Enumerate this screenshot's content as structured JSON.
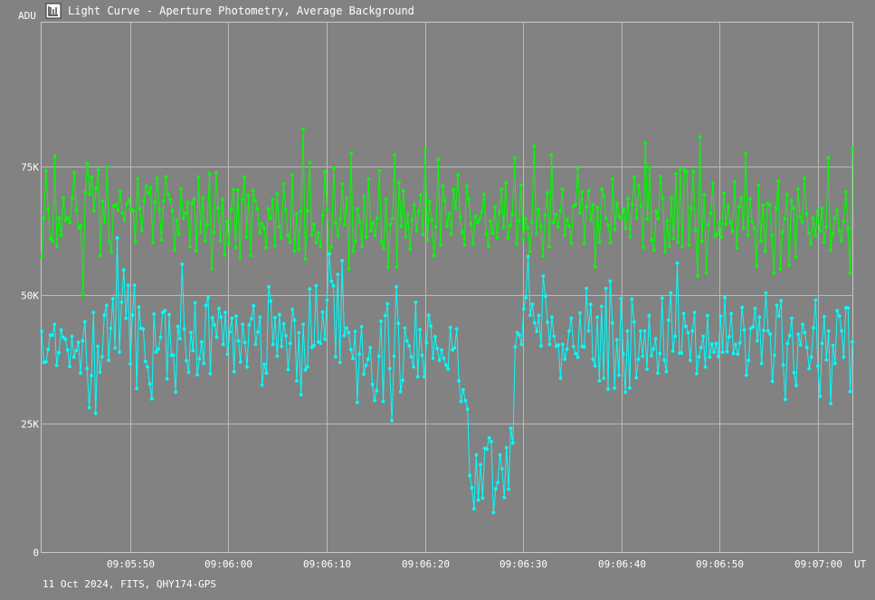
{
  "window": {
    "title": "Light Curve - Aperture Photometry, Average Background",
    "icon": "light-curve-app-icon"
  },
  "footer": {
    "info": "11 Oct 2024, FITS, QHY174-GPS"
  },
  "colors": {
    "background": "#828282",
    "grid": "#b9b9b9",
    "text": "#ffffff",
    "comparison_series": "#00ff00",
    "target_series": "#00ffff"
  },
  "chart_data": {
    "type": "line",
    "title": "Light Curve - Aperture Photometry, Average Background",
    "ylabel": "ADU",
    "xlabel": "UT",
    "ylim": [
      0,
      103000
    ],
    "xlim": [
      "09:05:41",
      "09:07:03.5"
    ],
    "grid": true,
    "y_ticks": [
      {
        "value": 0,
        "label": "0"
      },
      {
        "value": 25000,
        "label": "25K"
      },
      {
        "value": 50000,
        "label": "50K"
      },
      {
        "value": 75000,
        "label": "75K"
      }
    ],
    "x_ticks": [
      "09:05:50",
      "09:06:00",
      "09:06:10",
      "09:06:20",
      "09:06:30",
      "09:06:40",
      "09:06:50",
      "09:07:00"
    ],
    "sampling": {
      "start": "09:05:41",
      "end": "09:07:03.5",
      "points": 376
    },
    "series": [
      {
        "color": "#00ff00",
        "values": [
          57500,
          65000,
          74200,
          66700,
          61000,
          60500,
          77000,
          59500,
          65000,
          61600,
          68900,
          64500,
          65000,
          64100,
          68800,
          73800,
          66500,
          63000,
          63500,
          50000,
          70000,
          75600,
          69600,
          73000,
          66400,
          70800,
          74400,
          57700,
          68300,
          64200,
          74900,
          60400,
          58500,
          67300,
          67500,
          66500,
          70200,
          66000,
          64600,
          67700,
          68500,
          66700,
          66400,
          60400,
          72700,
          66800,
          62600,
          68300,
          71200,
          69800,
          70900,
          60200,
          68100,
          72700,
          66700,
          60700,
          68300,
          73000,
          69600,
          68600,
          66400,
          58800,
          64600,
          61800,
          70700,
          64900,
          65900,
          68000,
          59400,
          67800,
          68700,
          58600,
          72900,
          62200,
          68900,
          60500,
          63800,
          73600,
          55200,
          62200,
          73800,
          66900,
          60600,
          68600,
          57800,
          64300,
          59900,
          66700,
          70500,
          59200,
          70400,
          57200,
          68600,
          72900,
          61200,
          69400,
          57700,
          70300,
          68400,
          66700,
          62000,
          63900,
          63100,
          59200,
          66800,
          64900,
          68500,
          59600,
          69700,
          63300,
          61100,
          71600,
          66600,
          61700,
          60300,
          73400,
          58500,
          65800,
          58900,
          66300,
          82300,
          57000,
          66400,
          75800,
          61700,
          63800,
          60200,
          62100,
          59500,
          65500,
          74000,
          66600,
          58200,
          59400,
          74700,
          64000,
          61500,
          64800,
          71600,
          63700,
          68900,
          55100,
          77600,
          58500,
          60500,
          66800,
          64200,
          59500,
          69200,
          61200,
          72600,
          62500,
          64000,
          61600,
          64900,
          74200,
          60400,
          59100,
          68600,
          55400,
          63800,
          64900,
          77300,
          55500,
          71900,
          63400,
          70300,
          61400,
          65700,
          58900,
          64600,
          67600,
          62500,
          66300,
          69500,
          61800,
          78400,
          60700,
          68200,
          64600,
          57700,
          63300,
          76400,
          59700,
          71200,
          68400,
          63400,
          65800,
          61900,
          70500,
          67000,
          73400,
          65100,
          62200,
          59800,
          71200,
          68600,
          63800,
          59900,
          65400,
          64100,
          64800,
          66200,
          69600,
          61900,
          59500,
          64400,
          62000,
          67200,
          61100,
          66100,
          70600,
          63200,
          71900,
          61100,
          63500,
          65700,
          76600,
          59900,
          64400,
          71400,
          60800,
          64900,
          63100,
          58400,
          64100,
          79000,
          61900,
          66600,
          63400,
          57600,
          65500,
          69900,
          59400,
          77300,
          64100,
          65700,
          63200,
          66400,
          70600,
          61700,
          64700,
          63400,
          60100,
          67200,
          67600,
          74600,
          66000,
          70100,
          60100,
          67100,
          70300,
          64600,
          67600,
          55500,
          67000,
          60300,
          70600,
          69300,
          64900,
          63600,
          60200,
          72600,
          62700,
          67800,
          65300,
          64900,
          66600,
          63000,
          68800,
          61400,
          67600,
          73000,
          65000,
          71400,
          67300,
          59300,
          79600,
          64800,
          74800,
          60700,
          58700,
          66300,
          64800,
          73100,
          68800,
          58300,
          64400,
          59500,
          68900,
          61000,
          73600,
          60300,
          74500,
          59400,
          74300,
          73900,
          59700,
          66900,
          74000,
          62700,
          53700,
          80800,
          60400,
          69500,
          54300,
          63700,
          65900,
          71700,
          61500,
          61900,
          64000,
          61300,
          69800,
          63800,
          67300,
          64100,
          62400,
          72000,
          59200,
          67200,
          69000,
          63000,
          77500,
          61600,
          68700,
          64300,
          63000,
          55700,
          71400,
          60500,
          67500,
          58500,
          67800,
          67600,
          61600,
          54300,
          66900,
          72100,
          55000,
          62300,
          64800,
          69600,
          55800,
          68400,
          66900,
          57400,
          70700,
          65200,
          64200,
          72700,
          65800,
          62100,
          59900,
          65000,
          61600,
          66400,
          62500,
          66900,
          60200,
          63200,
          76700,
          58800,
          61900,
          65000,
          66500,
          62500,
          60600,
          64300,
          70100,
          62900,
          54300,
          78500
        ]
      },
      {
        "color": "#00ffff",
        "values": [
          42900,
          36900,
          37000,
          39400,
          42200,
          42200,
          44300,
          36300,
          38800,
          43200,
          41800,
          41400,
          39300,
          36100,
          42000,
          37900,
          39200,
          40800,
          34800,
          41100,
          44800,
          35700,
          28100,
          34300,
          46600,
          27000,
          40000,
          35000,
          38000,
          46100,
          48000,
          37300,
          43500,
          49300,
          39700,
          61100,
          38900,
          48600,
          54900,
          45500,
          51900,
          36600,
          46100,
          51900,
          31800,
          47700,
          43500,
          43400,
          37100,
          36000,
          32700,
          29800,
          46300,
          38900,
          39500,
          41800,
          46600,
          47000,
          33700,
          46200,
          38300,
          38300,
          31100,
          43900,
          41500,
          56000,
          43400,
          37200,
          35000,
          42700,
          39200,
          48500,
          34500,
          37600,
          40900,
          36700,
          48000,
          49500,
          34700,
          45600,
          44200,
          41800,
          47400,
          45700,
          40400,
          46600,
          38500,
          42800,
          45500,
          35100,
          45900,
          41100,
          37000,
          44300,
          40800,
          36000,
          44200,
          45400,
          47900,
          40400,
          42800,
          45700,
          32500,
          36500,
          34800,
          51600,
          48800,
          40400,
          45600,
          38100,
          46200,
          40000,
          44400,
          42100,
          35500,
          40600,
          47200,
          45100,
          33300,
          42700,
          30600,
          44300,
          35400,
          36000,
          51200,
          39800,
          40200,
          51800,
          40900,
          40600,
          46700,
          41400,
          49000,
          58000,
          52700,
          51800,
          38000,
          54000,
          36900,
          56700,
          42100,
          43600,
          42700,
          39400,
          37600,
          42900,
          29100,
          38500,
          43800,
          34600,
          36300,
          37500,
          39800,
          32600,
          29500,
          31400,
          38100,
          44900,
          29300,
          46000,
          48300,
          35700,
          25600,
          38100,
          51600,
          44500,
          31200,
          33400,
          43600,
          41100,
          40100,
          38000,
          36000,
          48600,
          34100,
          43300,
          38300,
          34100,
          40700,
          46100,
          44000,
          37700,
          41900,
          39600,
          37300,
          39300,
          37700,
          36400,
          35600,
          43700,
          39300,
          39700,
          43400,
          33300,
          29300,
          31600,
          29500,
          27800,
          14900,
          12500,
          8400,
          18900,
          10100,
          17000,
          10500,
          20200,
          20000,
          22200,
          21500,
          7700,
          12300,
          13500,
          18900,
          16200,
          10600,
          20300,
          12200,
          24100,
          21200,
          39900,
          42700,
          42200,
          40400,
          47300,
          49500,
          57500,
          46100,
          48200,
          44600,
          42900,
          46000,
          40100,
          53700,
          49800,
          44700,
          40400,
          45700,
          42000,
          40000,
          40300,
          33800,
          40400,
          37500,
          39500,
          43000,
          45500,
          40000,
          38600,
          37900,
          46500,
          40000,
          39900,
          51300,
          43000,
          48200,
          37500,
          36200,
          45700,
          33300,
          47800,
          33800,
          51300,
          31700,
          52700,
          44600,
          31900,
          41300,
          34400,
          49300,
          38500,
          31100,
          43000,
          31900,
          49200,
          44800,
          33900,
          37500,
          43000,
          38100,
          43000,
          35600,
          46000,
          38200,
          39500,
          41500,
          34800,
          38600,
          49400,
          37400,
          35100,
          45100,
          50400,
          39100,
          42000,
          56200,
          38700,
          38700,
          46400,
          43900,
          42700,
          37300,
          43000,
          46600,
          34700,
          38000,
          39800,
          42000,
          36000,
          46000,
          37900,
          40500,
          38900,
          40600,
          38000,
          45900,
          38900,
          49500,
          39000,
          41900,
          46400,
          38600,
          40400,
          38500,
          40700,
          47600,
          43200,
          34400,
          37300,
          43500,
          43800,
          47400,
          41100,
          45700,
          36700,
          43100,
          50400,
          43000,
          42400,
          33200,
          38300,
          48000,
          45900,
          48900,
          36400,
          29700,
          40600,
          42100,
          45500,
          34900,
          32400,
          42400,
          40300,
          44300,
          42700,
          39800,
          35700,
          37900,
          43600,
          49000,
          36200,
          30300,
          40600,
          45800,
          37400,
          43000,
          28900,
          40200,
          36700,
          47000,
          45900,
          43000,
          37900,
          47500,
          47500,
          31200,
          40900
        ]
      }
    ]
  }
}
